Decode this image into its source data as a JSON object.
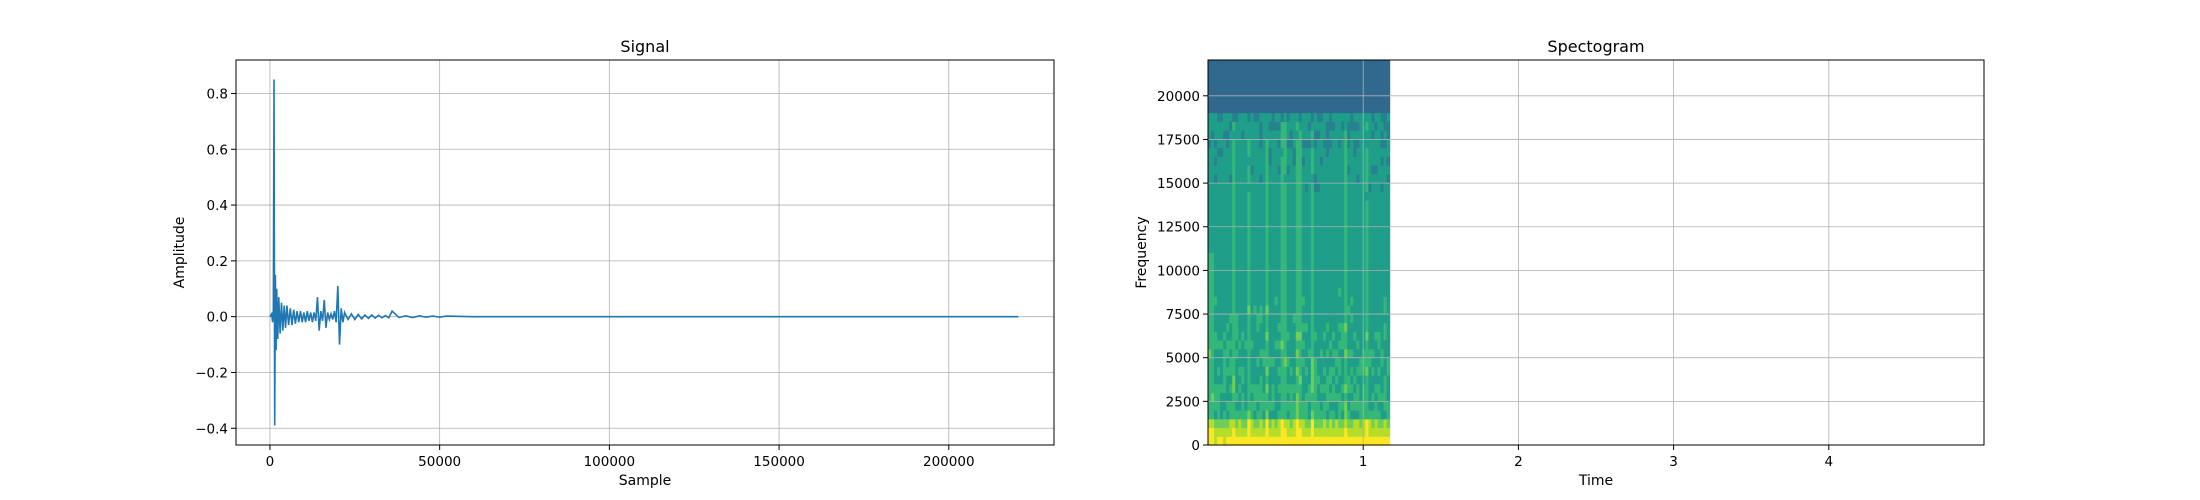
{
  "chart_data": [
    {
      "type": "line",
      "title": "Signal",
      "xlabel": "Sample",
      "ylabel": "Amplitude",
      "xlim": [
        -10000,
        231000
      ],
      "ylim": [
        -0.46,
        0.92
      ],
      "grid": true,
      "xticks": [
        0,
        50000,
        100000,
        150000,
        200000
      ],
      "xtick_labels": [
        "0",
        "50000",
        "100000",
        "150000",
        "200000"
      ],
      "yticks": [
        -0.4,
        -0.2,
        0.0,
        0.2,
        0.4,
        0.6,
        0.8
      ],
      "ytick_labels": [
        "−0.4",
        "−0.2",
        "0.0",
        "0.2",
        "0.4",
        "0.6",
        "0.8"
      ],
      "series": [
        {
          "color": "#1f77b4",
          "x": [
            0,
            500,
            800,
            1000,
            1200,
            1400,
            1600,
            1800,
            2000,
            2300,
            2600,
            3000,
            3400,
            3800,
            4200,
            4600,
            5000,
            5500,
            6000,
            6500,
            7000,
            7500,
            8000,
            8500,
            9000,
            9500,
            10000,
            10500,
            11000,
            11500,
            12000,
            12500,
            13000,
            13500,
            14000,
            14500,
            15000,
            15500,
            16000,
            16500,
            17000,
            17500,
            18000,
            18500,
            19000,
            19500,
            20000,
            20500,
            21000,
            21500,
            22000,
            23000,
            24000,
            25000,
            26000,
            27000,
            28000,
            29000,
            30000,
            31000,
            32000,
            33000,
            34000,
            35000,
            36000,
            38000,
            40000,
            42000,
            44000,
            46000,
            48000,
            50000,
            52000,
            60000,
            100000,
            150000,
            200000,
            220500
          ],
          "y": [
            0.0,
            0.01,
            -0.02,
            0.02,
            0.85,
            -0.39,
            0.15,
            -0.12,
            0.1,
            -0.08,
            0.07,
            -0.06,
            0.05,
            -0.05,
            0.04,
            -0.04,
            0.04,
            -0.03,
            0.03,
            -0.03,
            0.025,
            -0.025,
            0.02,
            -0.02,
            0.02,
            -0.02,
            0.015,
            -0.02,
            0.02,
            -0.015,
            0.015,
            -0.02,
            0.015,
            -0.015,
            0.07,
            -0.05,
            0.02,
            -0.015,
            0.06,
            -0.04,
            0.015,
            -0.01,
            0.01,
            -0.01,
            0.02,
            -0.02,
            0.11,
            -0.1,
            0.03,
            -0.02,
            0.015,
            -0.01,
            0.01,
            -0.01,
            0.008,
            -0.008,
            0.006,
            -0.006,
            0.006,
            -0.005,
            0.005,
            -0.004,
            0.004,
            -0.004,
            0.02,
            -0.003,
            0.003,
            -0.003,
            0.003,
            -0.002,
            0.002,
            -0.002,
            0.002,
            0.0,
            0.0,
            0.0,
            0.0,
            0.0
          ]
        }
      ]
    },
    {
      "type": "heatmap",
      "title": "Spectogram",
      "xlabel": "Time",
      "ylabel": "Frequency",
      "xlim": [
        0,
        5.0
      ],
      "ylim": [
        0,
        22050
      ],
      "grid": true,
      "xticks": [
        1,
        2,
        3,
        4
      ],
      "xtick_labels": [
        "1",
        "2",
        "3",
        "4"
      ],
      "yticks": [
        0,
        2500,
        5000,
        7500,
        10000,
        12500,
        15000,
        17500,
        20000
      ],
      "ytick_labels": [
        "0",
        "2500",
        "5000",
        "7500",
        "10000",
        "12500",
        "15000",
        "17500",
        "20000"
      ],
      "data_time_extent": [
        0,
        1.17
      ],
      "colormap": [
        "#31688e",
        "#26828e",
        "#1f9e89",
        "#35b779",
        "#6ece58",
        "#b5de2b",
        "#fde725"
      ]
    }
  ]
}
